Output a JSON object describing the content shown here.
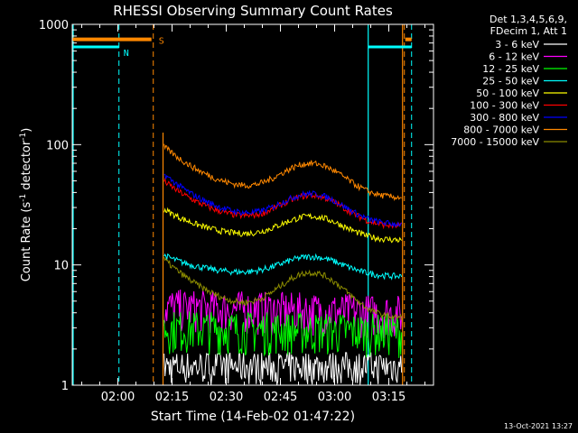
{
  "chart_data": {
    "type": "line",
    "title": "RHESSI Observing Summary Count Rates",
    "xlabel": "Start Time (14-Feb-02 01:47:22)",
    "ylabel_main": "Count Rate (s",
    "ylabel_sup1": "-1",
    "ylabel_mid": " detector",
    "ylabel_sup2": "-1",
    "ylabel_end": ")",
    "y_scale": "log",
    "ylim": [
      1,
      1000
    ],
    "xlim": [
      "01:47:22",
      "03:27:22"
    ],
    "x_ticks": [
      "02:00",
      "02:15",
      "02:30",
      "02:45",
      "03:00",
      "03:15"
    ],
    "y_ticks": [
      "1",
      "10",
      "100",
      "1000"
    ],
    "legend_header": [
      "Det 1,3,4,5,6,9,",
      "FDecim 1, Att 1"
    ],
    "legend_placement": "right",
    "footer_date": "13-Oct-2021 13:27",
    "series": [
      {
        "name": "3 - 6 keV",
        "color": "#ffffff",
        "values_start_end": [
          1.2,
          1.0
        ],
        "pattern": "noisy-low"
      },
      {
        "name": "6 - 12 keV",
        "color": "#ff00ff",
        "values_start_end": [
          4.5,
          4.0
        ],
        "pattern": "noisy-low"
      },
      {
        "name": "12 - 25 keV",
        "color": "#00ff00",
        "values_start_end": [
          3.0,
          2.8
        ],
        "pattern": "noisy-low"
      },
      {
        "name": "25 - 50 keV",
        "color": "#00ffff",
        "values_start_end": [
          14,
          10
        ],
        "peak": 12
      },
      {
        "name": "50 - 100 keV",
        "color": "#ffff00",
        "values_start_end": [
          33,
          20
        ],
        "peak": 26
      },
      {
        "name": "100 - 300 keV",
        "color": "#ff0000",
        "values_start_end": [
          55,
          26
        ],
        "peak": 39
      },
      {
        "name": "300 - 800 keV",
        "color": "#0000ff",
        "values_start_end": [
          62,
          27
        ],
        "peak": 40
      },
      {
        "name": "800 - 7000 keV",
        "color": "#ff8800",
        "values_start_end": [
          105,
          45
        ],
        "peak": 72
      },
      {
        "name": "7000 - 15000 keV",
        "color": "#8b8b00",
        "values_start_end": [
          12,
          4.5
        ],
        "peak": 9
      }
    ],
    "annotations": {
      "S_label": "S",
      "N_label": "N",
      "saa_level": 750,
      "night_level": 650
    }
  }
}
